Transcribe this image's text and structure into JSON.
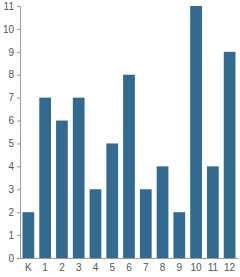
{
  "chart_data": {
    "type": "bar",
    "categories": [
      "K",
      "1",
      "2",
      "3",
      "4",
      "5",
      "6",
      "7",
      "8",
      "9",
      "10",
      "11",
      "12"
    ],
    "values": [
      2,
      7,
      6,
      7,
      3,
      5,
      8,
      3,
      4,
      2,
      11,
      4,
      9
    ],
    "color": "#336a90",
    "ylim": [
      0,
      11
    ],
    "yticks": [
      0,
      1,
      2,
      3,
      4,
      5,
      6,
      7,
      8,
      9,
      10,
      11
    ],
    "grid": false
  }
}
